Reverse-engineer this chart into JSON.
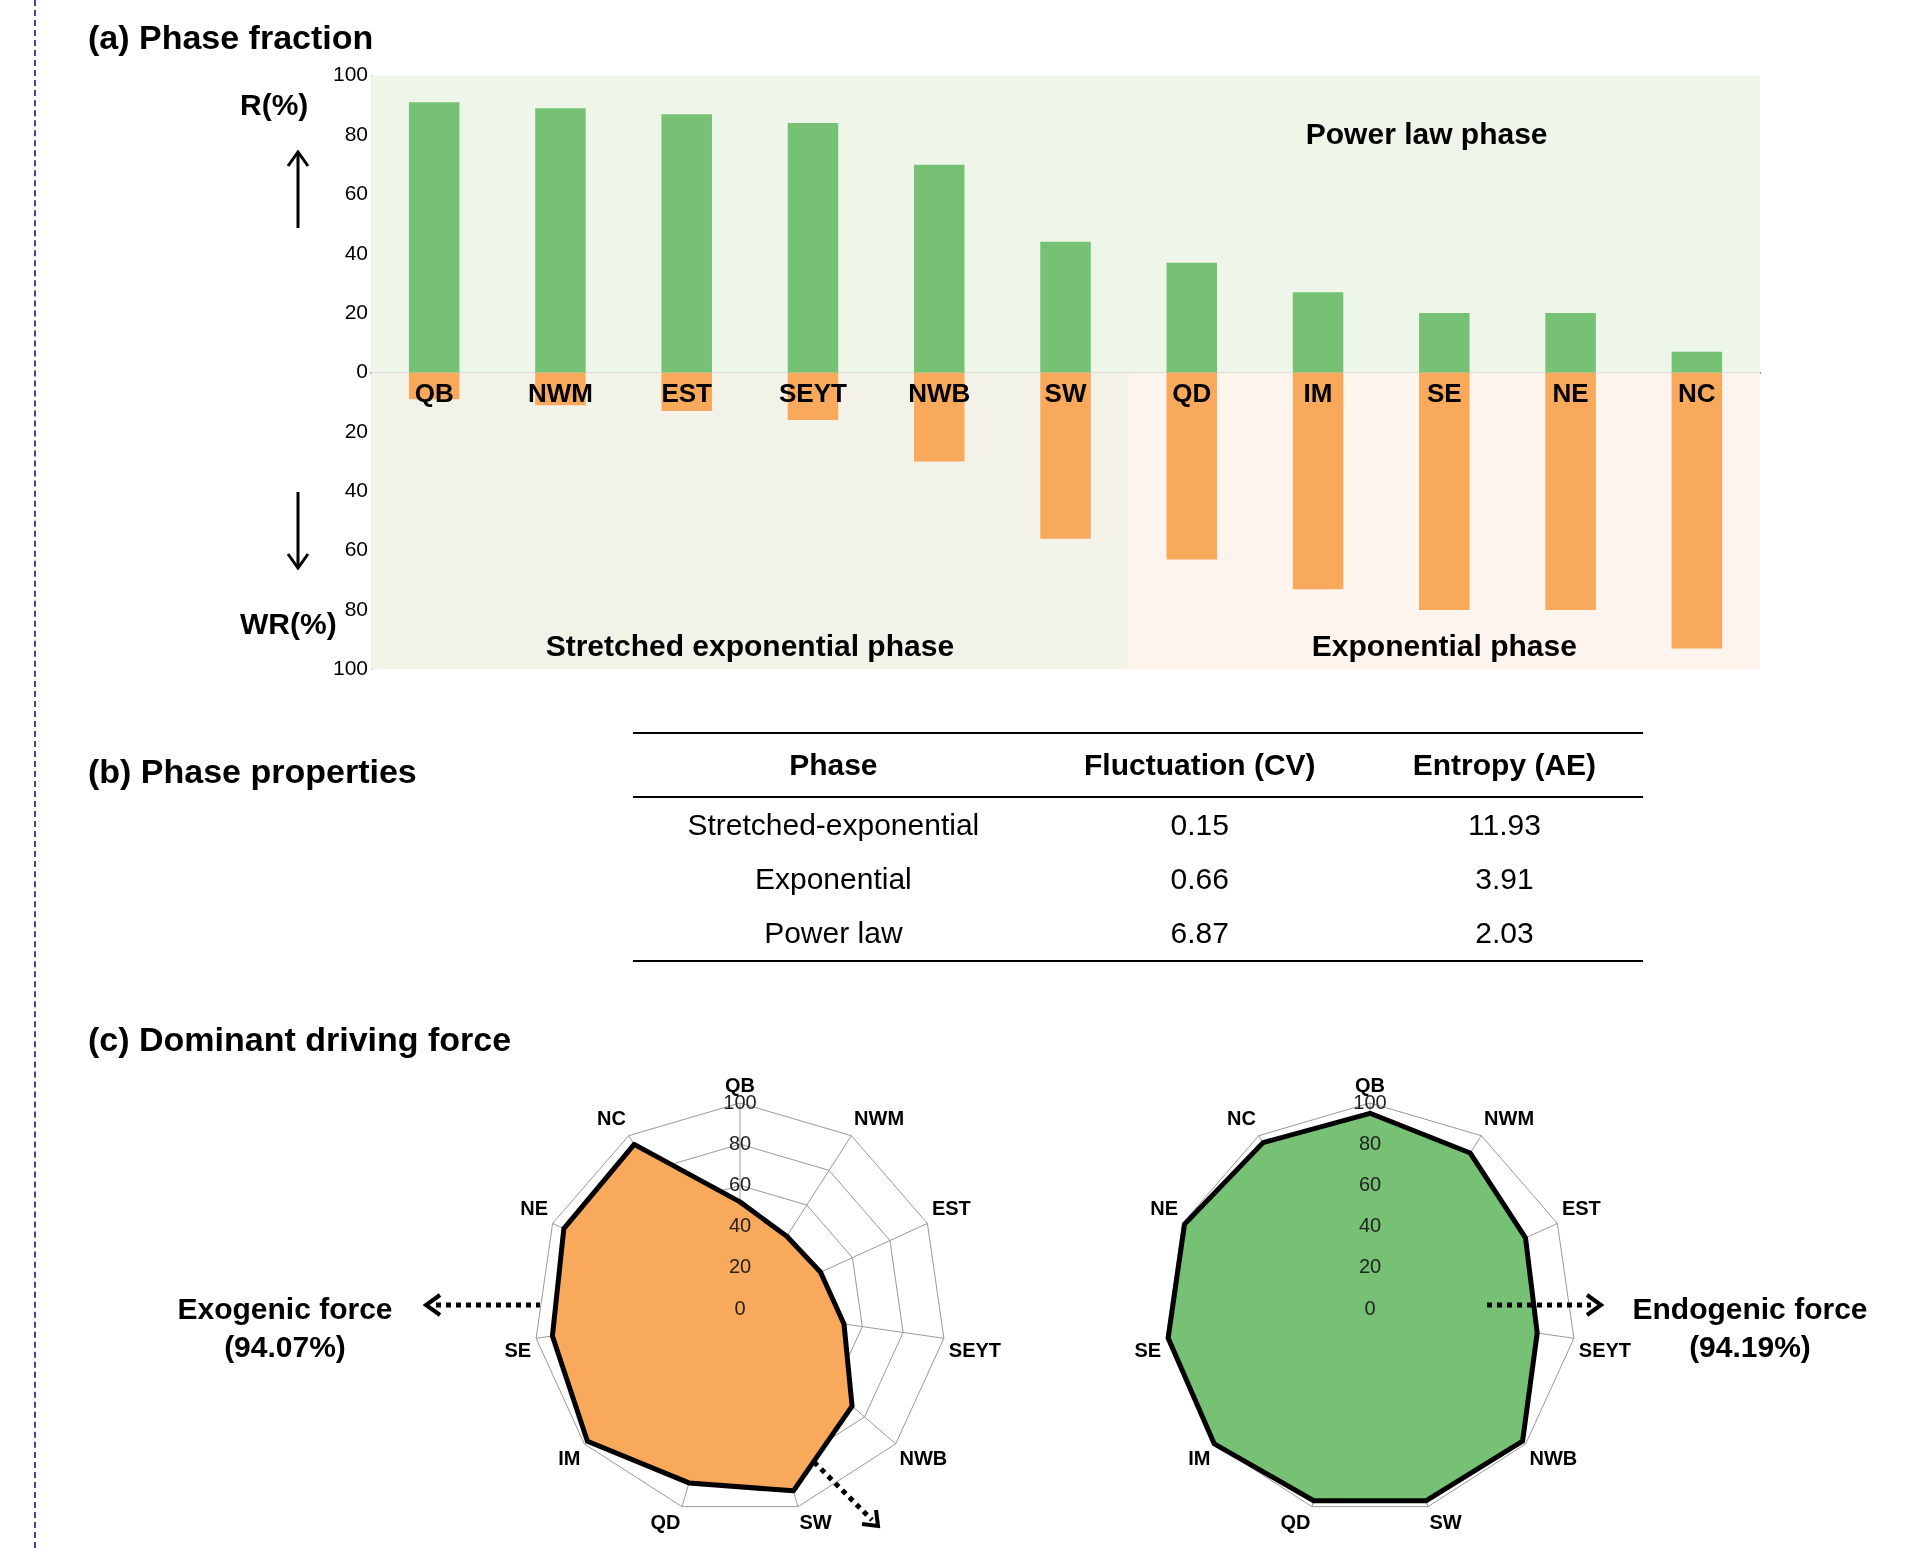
{
  "chart_data": [
    {
      "type": "bar",
      "title": "(a) Phase fraction",
      "ylabel": "R(%)",
      "annotations": [
        "WR(%)"
      ],
      "categories": [
        "QB",
        "NWM",
        "EST",
        "SEYT",
        "NWB",
        "SW",
        "QD",
        "IM",
        "SE",
        "NE",
        "NC"
      ],
      "stacked": true,
      "series": [
        {
          "color": "#76c174",
          "values": [
            91,
            89,
            87,
            84,
            70,
            44,
            37,
            27,
            20,
            20,
            7
          ]
        },
        {
          "color": "#f9a95b",
          "values": [
            -9,
            -11,
            -13,
            -16,
            -30,
            -56,
            -63,
            -73,
            -80,
            -80,
            -93
          ]
        }
      ],
      "ylim": [
        -100,
        100
      ],
      "yticks": [
        {
          "value": -100,
          "label": "100"
        },
        {
          "value": -80,
          "label": "80"
        },
        {
          "value": -60,
          "label": "60"
        },
        {
          "value": -40,
          "label": "40"
        },
        {
          "value": -20,
          "label": "20"
        },
        0,
        20,
        40,
        60,
        80,
        100
      ],
      "bands": [
        {
          "axis": "y",
          "from": 0,
          "to": 100,
          "label": "Power law phase",
          "color": "#eef6ea"
        },
        {
          "axis": "x",
          "from": "QB",
          "to": "SW",
          "label": "Stretched exponential phase",
          "color": "#f3f2e8"
        },
        {
          "axis": "x",
          "from": "QD",
          "to": "NC",
          "label": "Exponential phase",
          "color": "#fdf4ed"
        }
      ],
      "grid": false,
      "legend": false
    },
    {
      "type": "other",
      "title": "(b) Phase properties",
      "categories": [
        "Phase",
        "Fluctuation (CV)",
        "Entropy (AE)"
      ],
      "cell_labels": [
        [
          "Stretched-exponential",
          "0.15",
          "11.93"
        ],
        [
          "Exponential",
          "0.66",
          "3.91"
        ],
        [
          "Power law",
          "6.87",
          "2.03"
        ]
      ]
    },
    {
      "type": "radar",
      "title": "(c) Dominant driving force",
      "annotations": [
        "Exogenic force\n(94.07%)"
      ],
      "categories": [
        "QB",
        "NWM",
        "EST",
        "SEYT",
        "NWB",
        "SW",
        "QD",
        "IM",
        "SE",
        "NE",
        "NC"
      ],
      "series": [
        {
          "color": "#f9a95b",
          "values": [
            52,
            42,
            43,
            51,
            72,
            92,
            88,
            98,
            92,
            94,
            95
          ]
        }
      ],
      "ylim": [
        0,
        100
      ],
      "yticks": [
        0,
        20,
        40,
        60,
        80,
        100
      ],
      "grid": true,
      "marker": "none",
      "legend": false
    },
    {
      "type": "radar",
      "annotations": [
        "Endogenic force\n(94.19%)"
      ],
      "categories": [
        "QB",
        "NWM",
        "EST",
        "SEYT",
        "NWB",
        "SW",
        "QD",
        "IM",
        "SE",
        "NE",
        "NC"
      ],
      "series": [
        {
          "color": "#76c174",
          "values": [
            95,
            90,
            83,
            82,
            98,
            97,
            97,
            100,
            99,
            99,
            96
          ]
        }
      ],
      "ylim": [
        0,
        100
      ],
      "yticks": [
        0,
        20,
        40,
        60,
        80,
        100
      ],
      "grid": true,
      "marker": "none",
      "legend": false
    }
  ]
}
